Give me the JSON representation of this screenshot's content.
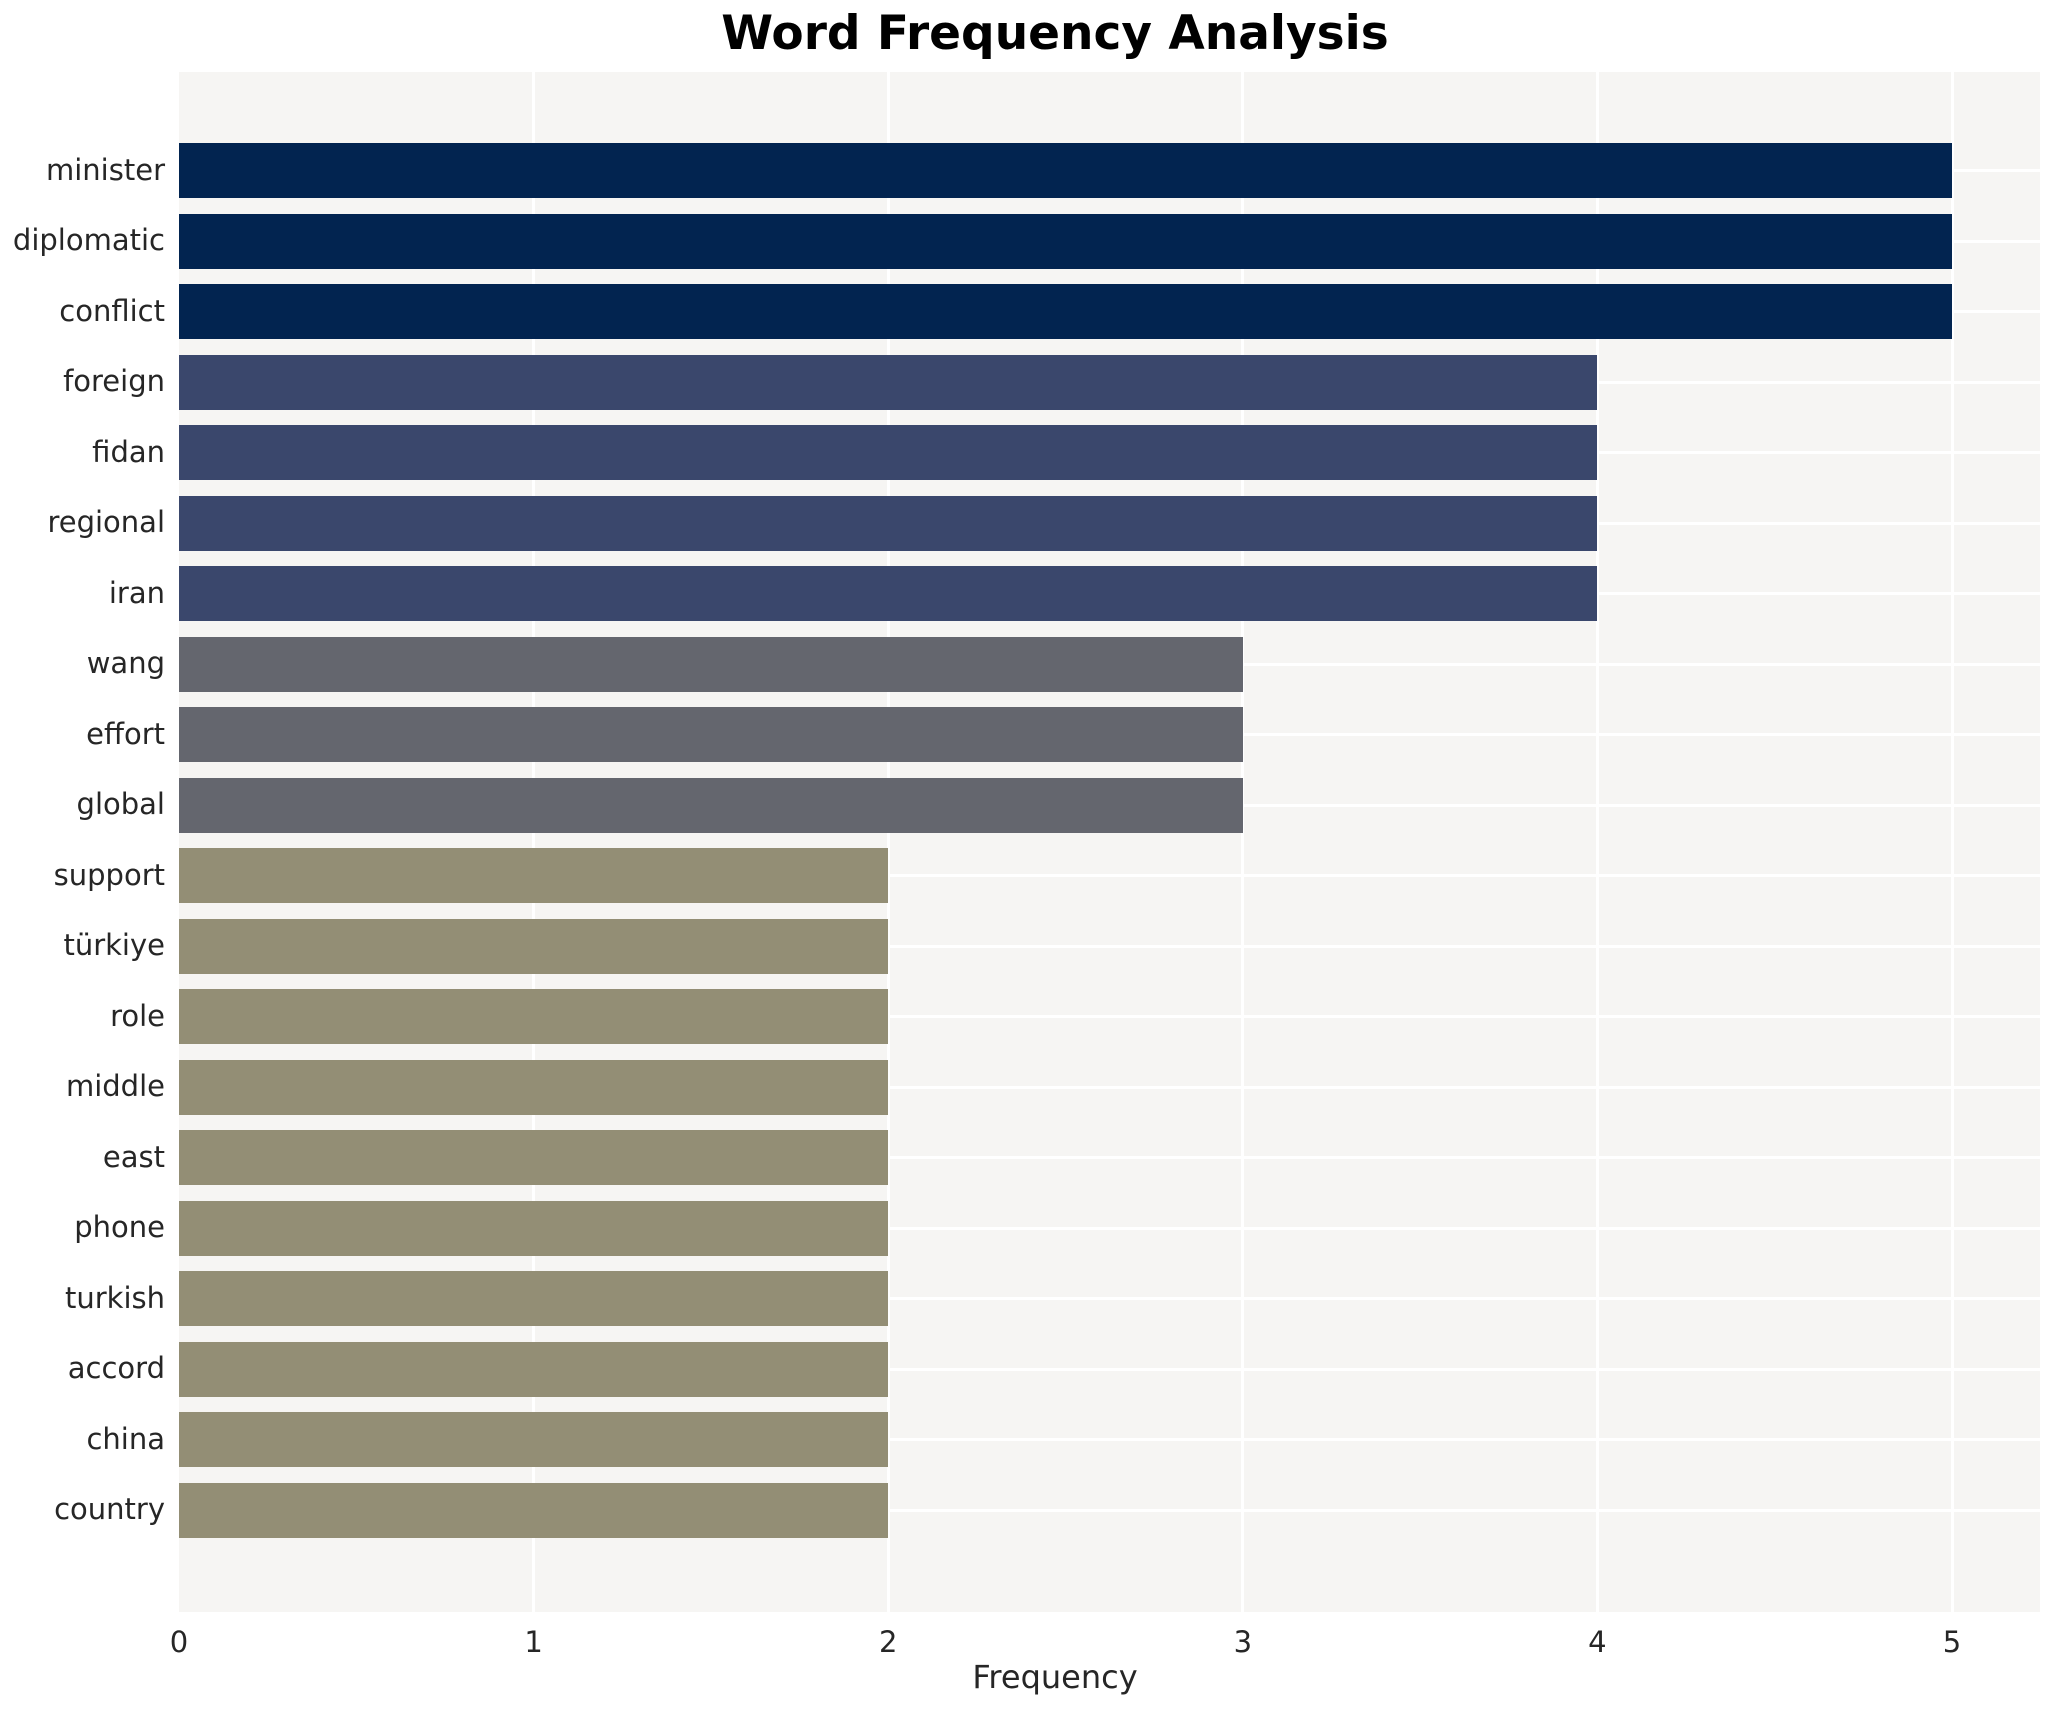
{
  "chart_data": {
    "type": "bar",
    "orientation": "horizontal",
    "title": "Word Frequency Analysis",
    "xlabel": "Frequency",
    "ylabel": "",
    "categories": [
      "minister",
      "diplomatic",
      "conflict",
      "foreign",
      "fidan",
      "regional",
      "iran",
      "wang",
      "effort",
      "global",
      "support",
      "türkiye",
      "role",
      "middle",
      "east",
      "phone",
      "turkish",
      "accord",
      "china",
      "country"
    ],
    "values": [
      5,
      5,
      5,
      4,
      4,
      4,
      4,
      3,
      3,
      3,
      2,
      2,
      2,
      2,
      2,
      2,
      2,
      2,
      2,
      2
    ],
    "x_ticks": [
      "0",
      "1",
      "2",
      "3",
      "4",
      "5"
    ],
    "xlim": [
      0,
      5.25
    ],
    "grid": true,
    "legend": "none",
    "colors_by_value": {
      "5": "#022450",
      "4": "#3a476c",
      "3": "#64666e",
      "2": "#938e75"
    },
    "plot_background": "#f6f5f3",
    "gridline_color": "#ffffff",
    "text_color": "#262626"
  }
}
